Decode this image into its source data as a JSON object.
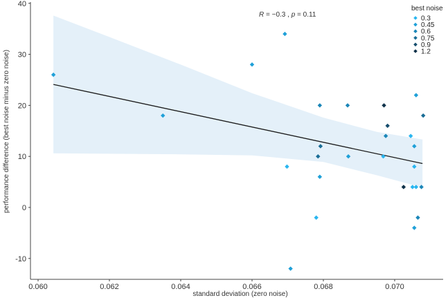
{
  "chart_data": {
    "type": "scatter",
    "title": "",
    "xlabel": "standard deviation (zero noise)",
    "ylabel": "performance difference (best noise minus zero noise)",
    "xlim": [
      0.0598,
      0.0712
    ],
    "ylim": [
      -14.5,
      40
    ],
    "x_ticks": [
      0.06,
      0.062,
      0.064,
      0.066,
      0.068,
      0.07
    ],
    "x_tick_labels": [
      "0.060",
      "0.062",
      "0.064",
      "0.066",
      "0.068",
      "0.070"
    ],
    "y_ticks": [
      -10,
      0,
      10,
      20,
      30,
      40
    ],
    "y_tick_labels": [
      "-10",
      "0",
      "10",
      "20",
      "30",
      "40"
    ],
    "grid": false,
    "annotation": {
      "R_label": "R",
      "R_text": " = −0.3 , ",
      "p_label": "p",
      "p_text": " = 0.11"
    },
    "legend": {
      "title": "best noise",
      "position": "top-right",
      "entries": [
        {
          "label": "0.3",
          "color": "#29b6f0"
        },
        {
          "label": "0.45",
          "color": "#1fa0d8"
        },
        {
          "label": "0.6",
          "color": "#1b86b8"
        },
        {
          "label": "0.75",
          "color": "#1a6d96"
        },
        {
          "label": "0.9",
          "color": "#164e6e"
        },
        {
          "label": "1.2",
          "color": "#10324a"
        }
      ]
    },
    "regression": {
      "x": [
        0.06043,
        0.07078
      ],
      "y": [
        24.1,
        8.6
      ],
      "color": "#1a1a1a",
      "ci_upper": [
        [
          0.06043,
          37.6
        ],
        [
          0.062,
          33.4
        ],
        [
          0.064,
          28.0
        ],
        [
          0.066,
          22.4
        ],
        [
          0.068,
          17.6
        ],
        [
          0.0695,
          14.8
        ],
        [
          0.07078,
          13.3
        ]
      ],
      "ci_lower": [
        [
          0.06043,
          10.6
        ],
        [
          0.064,
          10.4
        ],
        [
          0.066,
          10.2
        ],
        [
          0.068,
          8.9
        ],
        [
          0.0695,
          6.3
        ],
        [
          0.07078,
          3.9
        ]
      ],
      "ci_color": "#e4f0f9"
    },
    "series": [
      {
        "name": "0.3",
        "color": "#29b6f0",
        "points": [
          [
            0.06968,
            10
          ],
          [
            0.07055,
            8
          ],
          [
            0.0705,
            4
          ],
          [
            0.0706,
            4
          ],
          [
            0.07045,
            14
          ],
          [
            0.0678,
            -2
          ],
          [
            0.06698,
            8
          ]
        ]
      },
      {
        "name": "0.45",
        "color": "#1fa0d8",
        "points": [
          [
            0.06043,
            26
          ],
          [
            0.0635,
            18
          ],
          [
            0.066,
            28
          ],
          [
            0.06692,
            34
          ],
          [
            0.06708,
            -12
          ],
          [
            0.0687,
            10
          ],
          [
            0.0706,
            22
          ],
          [
            0.07055,
            12
          ],
          [
            0.07055,
            -4
          ],
          [
            0.0679,
            6
          ]
        ]
      },
      {
        "name": "0.6",
        "color": "#1b86b8",
        "points": [
          [
            0.0679,
            20
          ],
          [
            0.06868,
            20
          ],
          [
            0.06975,
            14
          ],
          [
            0.07075,
            4
          ],
          [
            0.07065,
            -2
          ]
        ]
      },
      {
        "name": "0.75",
        "color": "#1a6d96",
        "points": [
          [
            0.06785,
            10
          ],
          [
            0.06792,
            12
          ],
          [
            0.0708,
            18
          ]
        ]
      },
      {
        "name": "0.9",
        "color": "#164e6e",
        "points": [
          [
            0.0698,
            16
          ]
        ]
      },
      {
        "name": "1.2",
        "color": "#10324a",
        "points": [
          [
            0.0697,
            20
          ],
          [
            0.07025,
            4
          ]
        ]
      }
    ]
  }
}
